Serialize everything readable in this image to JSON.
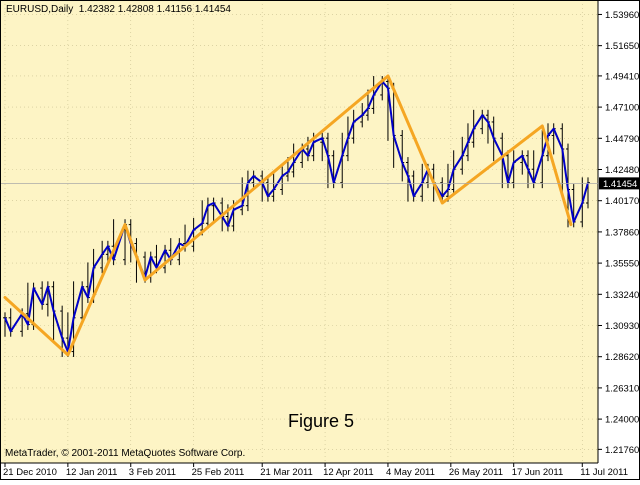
{
  "header": {
    "symbol_timeframe": "EURUSD,Daily",
    "ohlc": "1.42382 1.42808 1.41156 1.41454"
  },
  "caption": "Figure 5",
  "copyright": "MetaTrader, © 2001-2011 MetaQuotes Software Corp.",
  "colors": {
    "background": "#fdf4c5",
    "price_line": "#0000c8",
    "zigzag": "#f5a623",
    "bars": "#000000",
    "grid": "#c8bf90",
    "price_marker_bg": "#000000",
    "price_marker_text": "#ffffff"
  },
  "chart_data": {
    "type": "line",
    "title": "EURUSD,Daily",
    "y_axis_side": "right",
    "ylim": [
      1.2075,
      1.5503
    ],
    "y_ticks": [
      "1.53960",
      "1.51650",
      "1.49410",
      "1.47100",
      "1.44790",
      "1.42480",
      "1.40170",
      "1.37860",
      "1.35550",
      "1.33240",
      "1.30930",
      "1.28620",
      "1.26310",
      "1.24000",
      "1.21760"
    ],
    "x_ticks": [
      "21 Dec 2010",
      "12 Jan 2011",
      "3 Feb 2011",
      "25 Feb 2011",
      "21 Mar 2011",
      "12 Apr 2011",
      "4 May 2011",
      "26 May 2011",
      "17 Jun 2011",
      "11 Jul 2011"
    ],
    "current_price": "1.41454",
    "zigzag_points": [
      {
        "x": "21 Dec 2010",
        "y": 1.33
      },
      {
        "x": "12 Jan 2011",
        "y": 1.2875
      },
      {
        "x": "1 Feb 2011",
        "y": 1.384
      },
      {
        "x": "8 Feb 2011",
        "y": 1.343
      },
      {
        "x": "4 May 2011",
        "y": 1.494
      },
      {
        "x": "23 May 2011",
        "y": 1.4
      },
      {
        "x": "27 Jun 2011",
        "y": 1.457
      },
      {
        "x": "7 Jul 2011",
        "y": 1.384
      }
    ],
    "series": [
      {
        "name": "EURUSD",
        "points": [
          {
            "x": "21 Dec 2010",
            "y": 1.315
          },
          {
            "x": "23 Dec 2010",
            "y": 1.305
          },
          {
            "x": "27 Dec 2010",
            "y": 1.318
          },
          {
            "x": "29 Dec 2010",
            "y": 1.31
          },
          {
            "x": "31 Dec 2010",
            "y": 1.337
          },
          {
            "x": "3 Jan 2011",
            "y": 1.325
          },
          {
            "x": "5 Jan 2011",
            "y": 1.338
          },
          {
            "x": "7 Jan 2011",
            "y": 1.32
          },
          {
            "x": "10 Jan 2011",
            "y": 1.3
          },
          {
            "x": "12 Jan 2011",
            "y": 1.29
          },
          {
            "x": "14 Jan 2011",
            "y": 1.315
          },
          {
            "x": "17 Jan 2011",
            "y": 1.338
          },
          {
            "x": "19 Jan 2011",
            "y": 1.33
          },
          {
            "x": "21 Jan 2011",
            "y": 1.352
          },
          {
            "x": "24 Jan 2011",
            "y": 1.362
          },
          {
            "x": "26 Jan 2011",
            "y": 1.368
          },
          {
            "x": "28 Jan 2011",
            "y": 1.358
          },
          {
            "x": "1 Feb 2011",
            "y": 1.384
          },
          {
            "x": "3 Feb 2011",
            "y": 1.37
          },
          {
            "x": "5 Feb 2011",
            "y": 1.36
          },
          {
            "x": "8 Feb 2011",
            "y": 1.345
          },
          {
            "x": "10 Feb 2011",
            "y": 1.36
          },
          {
            "x": "12 Feb 2011",
            "y": 1.352
          },
          {
            "x": "15 Feb 2011",
            "y": 1.365
          },
          {
            "x": "17 Feb 2011",
            "y": 1.358
          },
          {
            "x": "20 Feb 2011",
            "y": 1.37
          },
          {
            "x": "22 Feb 2011",
            "y": 1.368
          },
          {
            "x": "25 Feb 2011",
            "y": 1.38
          },
          {
            "x": "28 Feb 2011",
            "y": 1.385
          },
          {
            "x": "2 Mar 2011",
            "y": 1.398
          },
          {
            "x": "4 Mar 2011",
            "y": 1.4
          },
          {
            "x": "7 Mar 2011",
            "y": 1.39
          },
          {
            "x": "9 Mar 2011",
            "y": 1.383
          },
          {
            "x": "11 Mar 2011",
            "y": 1.395
          },
          {
            "x": "14 Mar 2011",
            "y": 1.398
          },
          {
            "x": "16 Mar 2011",
            "y": 1.415
          },
          {
            "x": "18 Mar 2011",
            "y": 1.42
          },
          {
            "x": "21 Mar 2011",
            "y": 1.415
          },
          {
            "x": "23 Mar 2011",
            "y": 1.405
          },
          {
            "x": "25 Mar 2011",
            "y": 1.41
          },
          {
            "x": "28 Mar 2011",
            "y": 1.42
          },
          {
            "x": "30 Mar 2011",
            "y": 1.423
          },
          {
            "x": "1 Apr 2011",
            "y": 1.43
          },
          {
            "x": "4 Apr 2011",
            "y": 1.44
          },
          {
            "x": "6 Apr 2011",
            "y": 1.435
          },
          {
            "x": "8 Apr 2011",
            "y": 1.445
          },
          {
            "x": "11 Apr 2011",
            "y": 1.448
          },
          {
            "x": "13 Apr 2011",
            "y": 1.435
          },
          {
            "x": "15 Apr 2011",
            "y": 1.415
          },
          {
            "x": "18 Apr 2011",
            "y": 1.435
          },
          {
            "x": "20 Apr 2011",
            "y": 1.448
          },
          {
            "x": "22 Apr 2011",
            "y": 1.46
          },
          {
            "x": "25 Apr 2011",
            "y": 1.465
          },
          {
            "x": "27 Apr 2011",
            "y": 1.47
          },
          {
            "x": "29 Apr 2011",
            "y": 1.48
          },
          {
            "x": "2 May 2011",
            "y": 1.49
          },
          {
            "x": "4 May 2011",
            "y": 1.485
          },
          {
            "x": "6 May 2011",
            "y": 1.45
          },
          {
            "x": "9 May 2011",
            "y": 1.43
          },
          {
            "x": "11 May 2011",
            "y": 1.42
          },
          {
            "x": "13 May 2011",
            "y": 1.405
          },
          {
            "x": "16 May 2011",
            "y": 1.415
          },
          {
            "x": "18 May 2011",
            "y": 1.425
          },
          {
            "x": "20 May 2011",
            "y": 1.415
          },
          {
            "x": "23 May 2011",
            "y": 1.405
          },
          {
            "x": "25 May 2011",
            "y": 1.41
          },
          {
            "x": "27 May 2011",
            "y": 1.425
          },
          {
            "x": "30 May 2011",
            "y": 1.435
          },
          {
            "x": "1 Jun 2011",
            "y": 1.445
          },
          {
            "x": "3 Jun 2011",
            "y": 1.455
          },
          {
            "x": "6 Jun 2011",
            "y": 1.465
          },
          {
            "x": "8 Jun 2011",
            "y": 1.46
          },
          {
            "x": "10 Jun 2011",
            "y": 1.448
          },
          {
            "x": "13 Jun 2011",
            "y": 1.435
          },
          {
            "x": "15 Jun 2011",
            "y": 1.415
          },
          {
            "x": "17 Jun 2011",
            "y": 1.43
          },
          {
            "x": "20 Jun 2011",
            "y": 1.435
          },
          {
            "x": "22 Jun 2011",
            "y": 1.425
          },
          {
            "x": "24 Jun 2011",
            "y": 1.415
          },
          {
            "x": "27 Jun 2011",
            "y": 1.435
          },
          {
            "x": "29 Jun 2011",
            "y": 1.45
          },
          {
            "x": "1 Jul 2011",
            "y": 1.455
          },
          {
            "x": "4 Jul 2011",
            "y": 1.44
          },
          {
            "x": "6 Jul 2011",
            "y": 1.41
          },
          {
            "x": "8 Jul 2011",
            "y": 1.386
          },
          {
            "x": "11 Jul 2011",
            "y": 1.4
          },
          {
            "x": "13 Jul 2011",
            "y": 1.415
          }
        ]
      }
    ]
  }
}
